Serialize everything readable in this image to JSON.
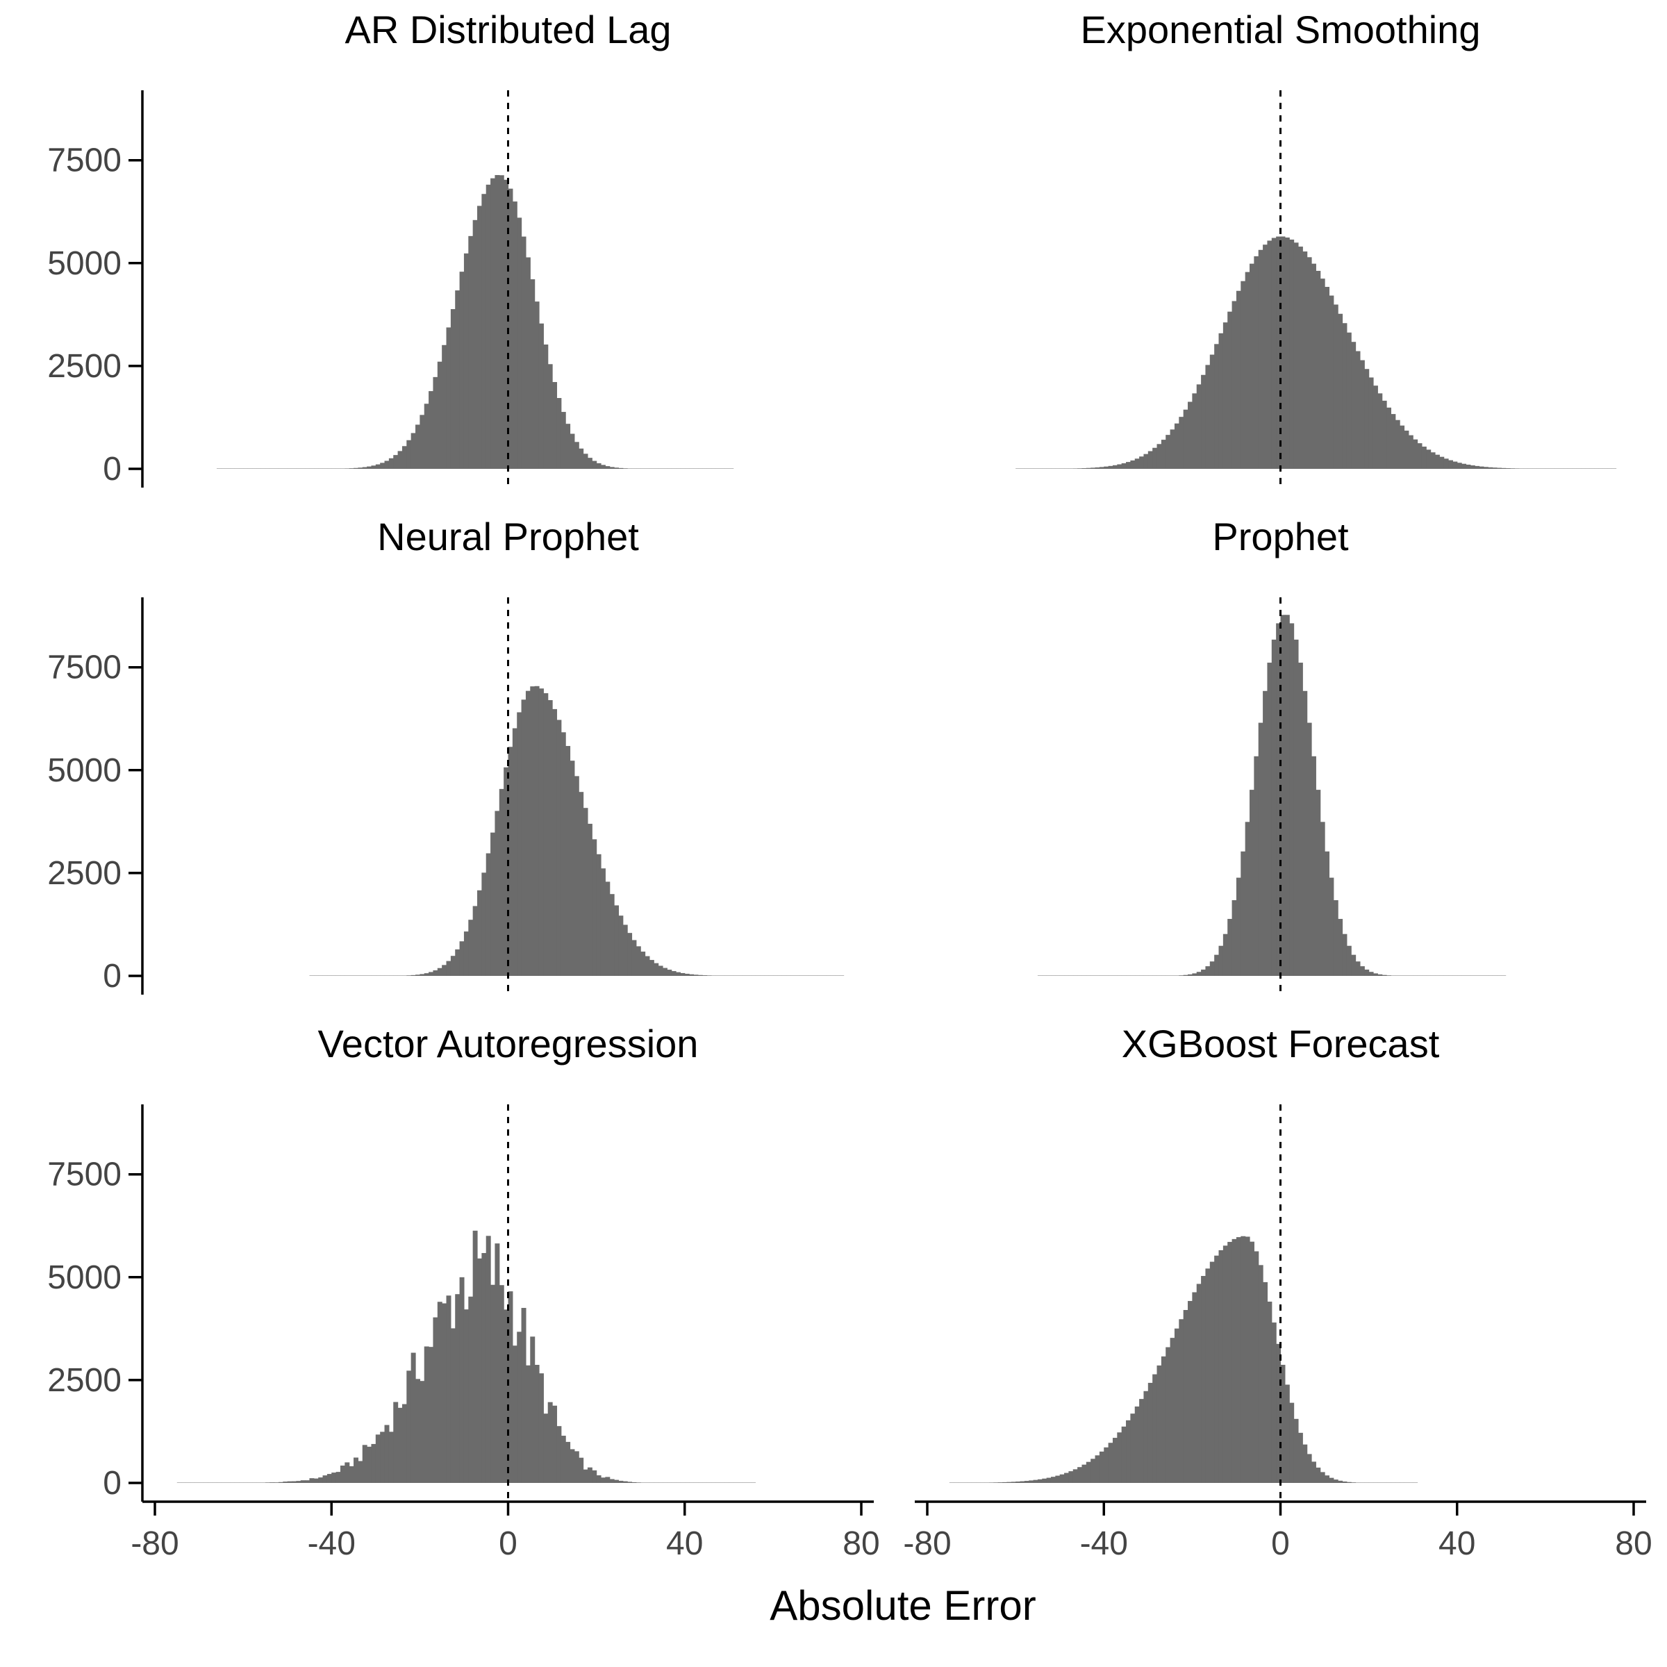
{
  "chart_data": {
    "type": "histogram",
    "xlabel": "Absolute Error",
    "ylabel": "",
    "xlim": [
      -80,
      80
    ],
    "ylim": [
      0,
      9200
    ],
    "x_ticks": [
      -80,
      -40,
      0,
      40,
      80
    ],
    "y_ticks": [
      0,
      2500,
      5000,
      7500
    ],
    "x_tick_labels": [
      "-80",
      "-40",
      "0",
      "40",
      "80"
    ],
    "y_tick_labels": [
      "0",
      "2500",
      "5000",
      "7500"
    ],
    "reference_line": {
      "x": 0,
      "style": "dashed",
      "color": "#000000"
    },
    "bar_color": "#6b6b6b",
    "grid": false,
    "legend": "none",
    "bin_width": 1,
    "panels": [
      {
        "title": "AR Distributed Lag",
        "approx_shape": {
          "peak_x": -2,
          "peak_count": 7150,
          "spread_left": 9.5,
          "spread_right": 8,
          "x_range": [
            -66,
            50
          ]
        },
        "x": [
          -60,
          -55,
          -50,
          -45,
          -40,
          -35,
          -30,
          -25,
          -20,
          -15,
          -10,
          -5,
          -2,
          0,
          5,
          10,
          15,
          20,
          25,
          30,
          35,
          40
        ],
        "counts": [
          30,
          60,
          110,
          220,
          400,
          750,
          1250,
          2100,
          3200,
          4700,
          6100,
          7000,
          7150,
          6900,
          5400,
          3300,
          1500,
          600,
          220,
          80,
          30,
          10
        ]
      },
      {
        "title": "Exponential Smoothing",
        "approx_shape": {
          "peak_x": 0,
          "peak_count": 5650,
          "spread_left": 13,
          "spread_right": 15,
          "x_range": [
            -60,
            75
          ]
        },
        "x": [
          -60,
          -50,
          -40,
          -30,
          -20,
          -15,
          -10,
          -5,
          0,
          5,
          10,
          15,
          20,
          30,
          40,
          50,
          60,
          70
        ],
        "counts": [
          20,
          80,
          300,
          900,
          2300,
          3300,
          4300,
          5200,
          5650,
          5300,
          4400,
          3400,
          2500,
          1200,
          500,
          200,
          60,
          20
        ]
      },
      {
        "title": "Neural Prophet",
        "approx_shape": {
          "peak_x": 6,
          "peak_count": 7050,
          "spread_left": 8,
          "spread_right": 11,
          "x_range": [
            -45,
            75
          ]
        },
        "x": [
          -30,
          -20,
          -15,
          -10,
          -5,
          0,
          3,
          6,
          10,
          15,
          20,
          25,
          30,
          40,
          50,
          60
        ],
        "counts": [
          30,
          180,
          450,
          1100,
          2500,
          4800,
          6500,
          7050,
          6100,
          4000,
          2400,
          1300,
          650,
          250,
          90,
          30
        ]
      },
      {
        "title": "Prophet",
        "approx_shape": {
          "peak_x": 1,
          "peak_count": 8800,
          "spread_left": 6.5,
          "spread_right": 6.5,
          "x_range": [
            -55,
            50
          ]
        },
        "x": [
          -40,
          -30,
          -20,
          -15,
          -10,
          -5,
          -2,
          0,
          1,
          3,
          5,
          10,
          15,
          20,
          30,
          40
        ],
        "counts": [
          20,
          120,
          550,
          1300,
          3000,
          6000,
          8000,
          8700,
          8800,
          8300,
          7200,
          4000,
          1600,
          500,
          90,
          20
        ]
      },
      {
        "title": "Vector Autoregression",
        "approx_shape": {
          "peak_x": -5,
          "peak_count": 5600,
          "spread_left": 14,
          "spread_right": 10,
          "x_range": [
            -75,
            55
          ]
        },
        "x": [
          -70,
          -60,
          -50,
          -40,
          -30,
          -25,
          -20,
          -15,
          -10,
          -5,
          0,
          5,
          10,
          15,
          20,
          30,
          40,
          50
        ],
        "counts": [
          20,
          100,
          300,
          750,
          1500,
          2100,
          2900,
          3900,
          4900,
          5600,
          4900,
          3300,
          1900,
          900,
          400,
          100,
          30,
          10
        ]
      },
      {
        "title": "XGBoost Forecast",
        "approx_shape": {
          "peak_x": -8,
          "peak_count": 6000,
          "spread_left": 16,
          "spread_right": 7,
          "x_range": [
            -75,
            30
          ]
        },
        "x": [
          -70,
          -60,
          -50,
          -40,
          -30,
          -25,
          -20,
          -15,
          -10,
          -8,
          -5,
          0,
          5,
          10,
          20
        ],
        "counts": [
          30,
          200,
          500,
          1000,
          2000,
          2800,
          3800,
          4900,
          5800,
          6000,
          5700,
          4000,
          1400,
          300,
          30
        ]
      }
    ]
  }
}
